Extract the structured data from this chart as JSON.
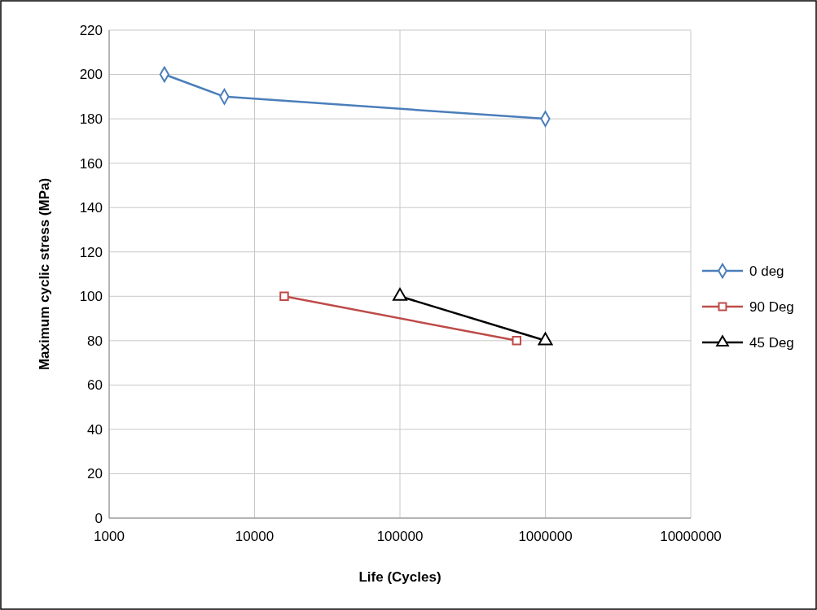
{
  "chart_data": {
    "type": "line",
    "xlabel": "Life (Cycles)",
    "ylabel": "Maximum cyclic stress (MPa)",
    "log": "x",
    "xlim": [
      1000,
      10000000
    ],
    "xticks": [
      1000,
      10000,
      100000,
      1000000,
      10000000
    ],
    "ylim": [
      0,
      220
    ],
    "yticks": [
      0,
      20,
      40,
      60,
      80,
      100,
      120,
      140,
      160,
      180,
      200,
      220
    ],
    "grid": true,
    "legend": "right",
    "series": [
      {
        "name": "0 deg",
        "color": "#4a7ebb",
        "marker": "diamond",
        "x": [
          2400,
          6200,
          1000000
        ],
        "values": [
          200,
          190,
          180
        ]
      },
      {
        "name": "90 Deg",
        "color": "#be4b48",
        "marker": "square",
        "x": [
          16000,
          635000
        ],
        "values": [
          100,
          80
        ]
      },
      {
        "name": "45 Deg",
        "color": "#000000",
        "marker": "triangle",
        "x": [
          100000,
          1000000
        ],
        "values": [
          100,
          80
        ]
      }
    ]
  }
}
